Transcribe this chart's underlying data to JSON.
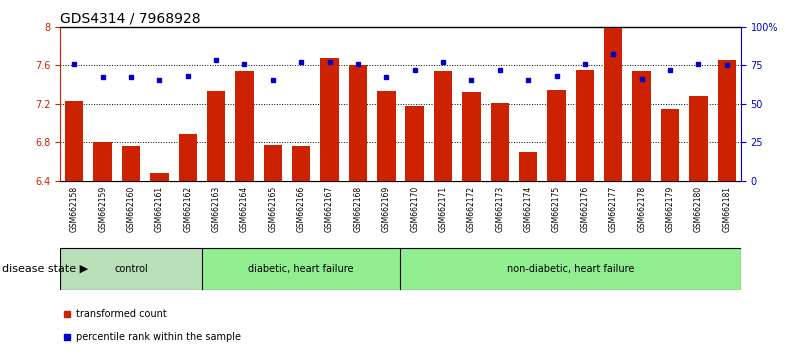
{
  "title": "GDS4314 / 7968928",
  "samples": [
    "GSM662158",
    "GSM662159",
    "GSM662160",
    "GSM662161",
    "GSM662162",
    "GSM662163",
    "GSM662164",
    "GSM662165",
    "GSM662166",
    "GSM662167",
    "GSM662168",
    "GSM662169",
    "GSM662170",
    "GSM662171",
    "GSM662172",
    "GSM662173",
    "GSM662174",
    "GSM662175",
    "GSM662176",
    "GSM662177",
    "GSM662178",
    "GSM662179",
    "GSM662180",
    "GSM662181"
  ],
  "bar_values": [
    7.23,
    6.8,
    6.76,
    6.48,
    6.88,
    7.33,
    7.54,
    6.77,
    6.76,
    7.67,
    7.6,
    7.33,
    7.17,
    7.54,
    7.32,
    7.21,
    6.7,
    7.34,
    7.55,
    7.98,
    7.54,
    7.14,
    7.28,
    7.65
  ],
  "percentile_values": [
    76,
    67,
    67,
    65,
    68,
    78,
    76,
    65,
    77,
    77,
    76,
    67,
    72,
    77,
    65,
    72,
    65,
    68,
    76,
    82,
    66,
    72,
    76,
    75
  ],
  "bar_color": "#cc2200",
  "dot_color": "#0000cc",
  "ylim_left": [
    6.4,
    8.0
  ],
  "ylim_right": [
    0,
    100
  ],
  "yticks_left": [
    6.4,
    6.8,
    7.2,
    7.6,
    8.0
  ],
  "ytick_labels_left": [
    "6.4",
    "6.8",
    "7.2",
    "7.6",
    "8"
  ],
  "yticks_right": [
    0,
    25,
    50,
    75,
    100
  ],
  "ytick_labels_right": [
    "0",
    "25",
    "50",
    "75",
    "100%"
  ],
  "grid_lines": [
    6.8,
    7.2,
    7.6
  ],
  "groups": [
    {
      "label": "control",
      "start": 0,
      "end": 4,
      "color": "#b8dfb8"
    },
    {
      "label": "diabetic, heart failure",
      "start": 5,
      "end": 11,
      "color": "#90ee90"
    },
    {
      "label": "non-diabetic, heart failure",
      "start": 12,
      "end": 23,
      "color": "#90ee90"
    }
  ],
  "legend_items": [
    {
      "label": "transformed count",
      "color": "#cc2200"
    },
    {
      "label": "percentile rank within the sample",
      "color": "#0000cc"
    }
  ],
  "disease_state_label": "disease state",
  "title_fontsize": 10,
  "tick_fontsize": 7,
  "label_fontsize": 8
}
